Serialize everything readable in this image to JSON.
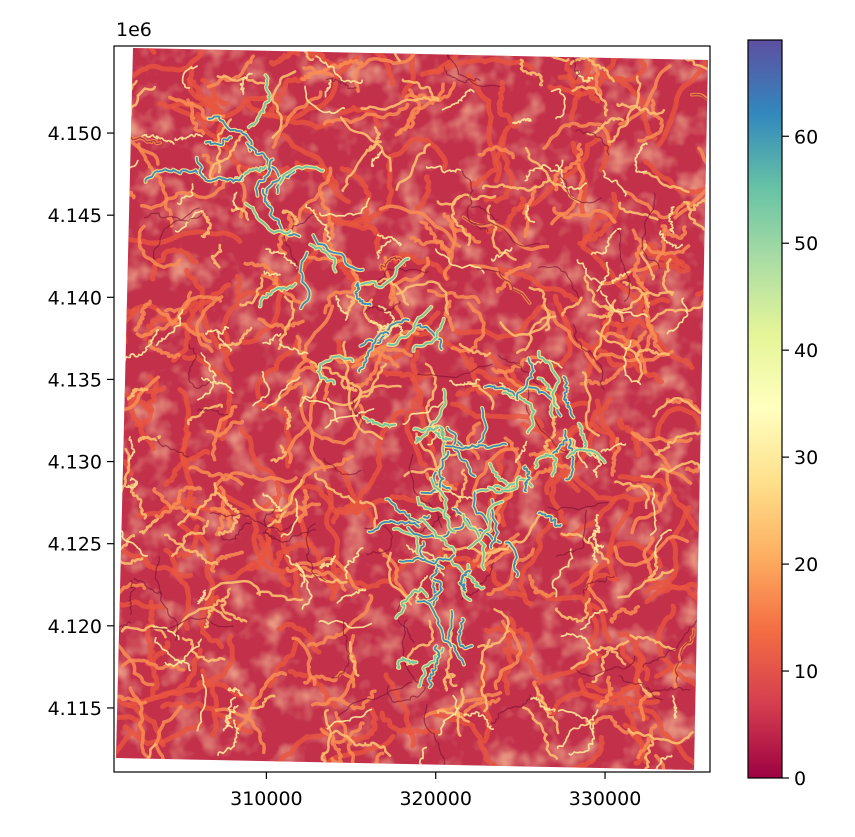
{
  "chart_data": {
    "type": "heatmap",
    "title": "",
    "xlabel": "",
    "ylabel": "",
    "x_ticks": [
      310000,
      320000,
      330000
    ],
    "x_tick_labels": [
      "310000",
      "320000",
      "330000"
    ],
    "y_ticks": [
      4.115,
      4.12,
      4.125,
      4.13,
      4.135,
      4.14,
      4.145,
      4.15
    ],
    "y_tick_labels": [
      "4.115",
      "4.120",
      "4.125",
      "4.130",
      "4.135",
      "4.140",
      "4.145",
      "4.150"
    ],
    "y_offset_label": "1e6",
    "xlim": [
      301000,
      336200
    ],
    "ylim": [
      4.1111,
      4.1553
    ],
    "colorbar": {
      "colormap": "Spectral",
      "range": [
        0,
        69
      ],
      "ticks": [
        0,
        10,
        20,
        30,
        40,
        50,
        60
      ],
      "tick_labels": [
        "0",
        "10",
        "20",
        "30",
        "40",
        "50",
        "60"
      ],
      "colors": [
        "#9e0142",
        "#d53e4f",
        "#f46d43",
        "#fdae61",
        "#fee08b",
        "#ffffbf",
        "#e6f598",
        "#abdda4",
        "#66c2a5",
        "#3288bd",
        "#5e4fa2"
      ]
    },
    "grid": false,
    "background_color": "#c2304a"
  }
}
